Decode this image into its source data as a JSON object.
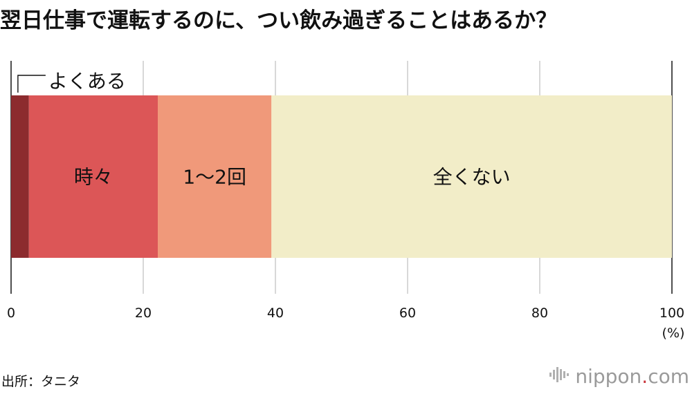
{
  "chart_data": {
    "type": "bar",
    "orientation": "horizontal-stacked-100",
    "title": "翌日仕事で運転するのに、つい飲み過ぎることはあるか？",
    "categories": [
      "よくある",
      "時々",
      "1〜2回",
      "全くない"
    ],
    "values": [
      2.7,
      19.5,
      17.2,
      60.6
    ],
    "colors": [
      "#8c2b2e",
      "#dc5657",
      "#f0997a",
      "#f2edc8"
    ],
    "xlim": [
      0,
      100
    ],
    "xticks": [
      "0",
      "20",
      "40",
      "60",
      "80",
      "100"
    ],
    "xunit": "(%)",
    "grid": true
  },
  "source": "出所：タニタ",
  "brand": {
    "name": "nippon",
    "dot": ".",
    "tld": "com",
    "accent": "#c9353b"
  }
}
